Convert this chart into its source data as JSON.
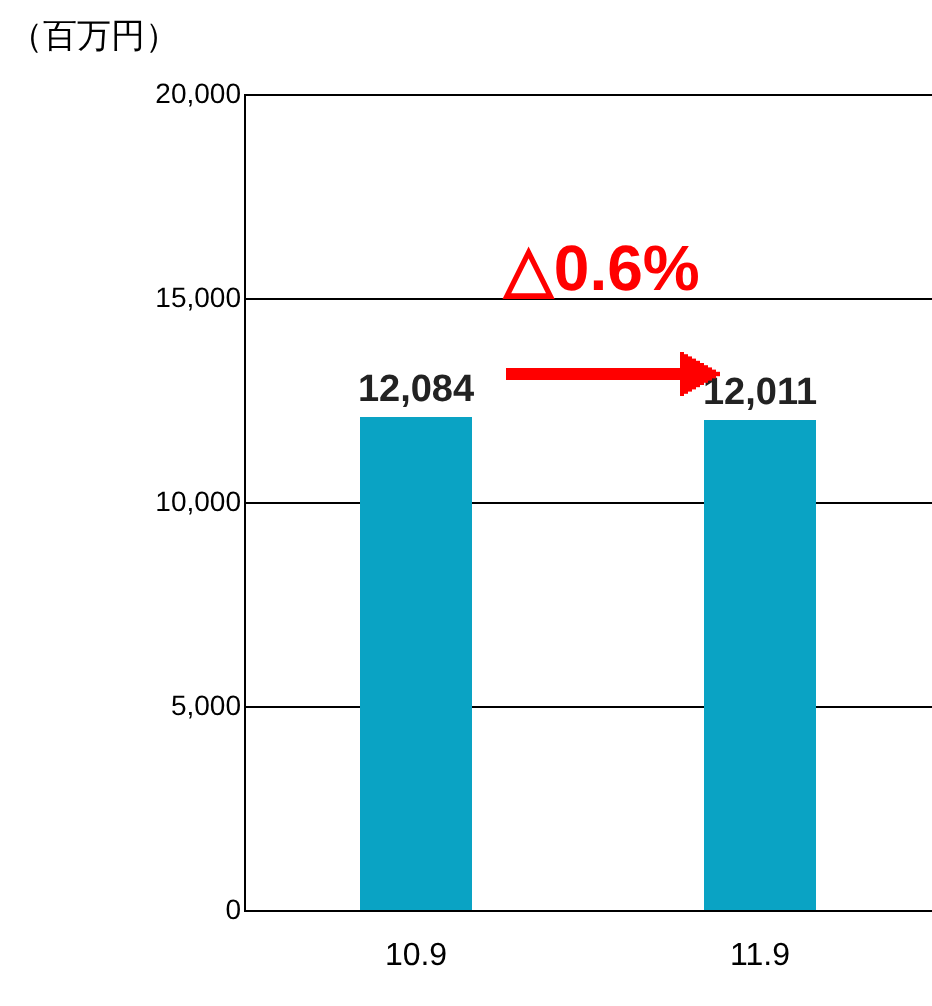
{
  "chart_data": {
    "type": "bar",
    "ylabel": "（百万円）",
    "categories": [
      "10.9",
      "11.9"
    ],
    "values": [
      12084,
      12011
    ],
    "color": "#0aa3c4",
    "ylim": [
      0,
      20000
    ],
    "yticks": [
      {
        "value": 0,
        "label": "0"
      },
      {
        "value": 5000,
        "label": "5,000"
      },
      {
        "value": 10000,
        "label": "10,000"
      },
      {
        "value": 15000,
        "label": "15,000"
      },
      {
        "value": 20000,
        "label": "20,000"
      }
    ],
    "grid": "y",
    "value_labels": [
      "12,084",
      "12,011"
    ],
    "annotations": [
      "△0.6%"
    ]
  }
}
